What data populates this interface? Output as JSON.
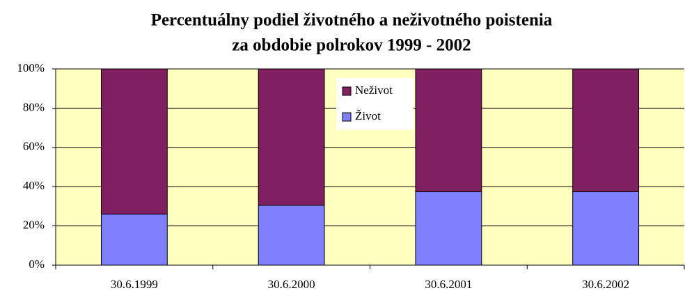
{
  "chart_data": {
    "type": "stacked_bar",
    "title": [
      "Percentuálny podiel životného a neživotného poistenia",
      "za obdobie polrokov 1999 - 2002"
    ],
    "categories": [
      "30.6.1999",
      "30.6.2000",
      "30.6.2001",
      "30.6.2002"
    ],
    "series": [
      {
        "name": "Život",
        "color": "#8080ff",
        "values": [
          26,
          30.5,
          37.5,
          37.5
        ]
      },
      {
        "name": "Neživot",
        "color": "#802060",
        "values": [
          74,
          69.5,
          62.5,
          62.5
        ]
      }
    ],
    "ylim": [
      0,
      100
    ],
    "yticks": [
      {
        "value": 0,
        "label": "0%"
      },
      {
        "value": 20,
        "label": "20%"
      },
      {
        "value": 40,
        "label": "40%"
      },
      {
        "value": 60,
        "label": "60%"
      },
      {
        "value": 80,
        "label": "80%"
      },
      {
        "value": 100,
        "label": "100%"
      }
    ],
    "grid": true,
    "legend": "top",
    "background": "#ffffc0"
  }
}
